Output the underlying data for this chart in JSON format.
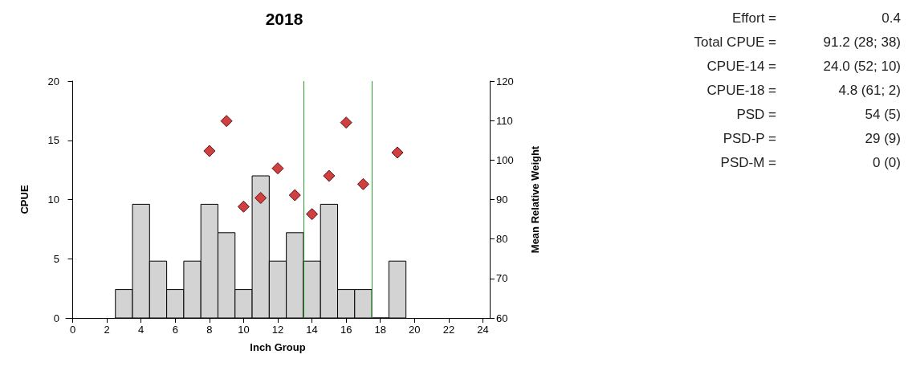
{
  "chart_data": {
    "type": "histogram",
    "title": "2018",
    "xlabel": "Inch Group",
    "ylabel": "CPUE",
    "y2label": "Mean Relative Weight",
    "bins": [
      2.5,
      3.5,
      4.5,
      5.5,
      6.5,
      7.5,
      8.5,
      9.5,
      10.5,
      11.5,
      12.5,
      13.5,
      14.5,
      15.5,
      16.5,
      17.5,
      18.5,
      19.5
    ],
    "values": [
      2.4,
      9.6,
      4.8,
      2.4,
      4.8,
      9.6,
      7.2,
      2.4,
      12,
      4.8,
      7.2,
      4.8,
      9.6,
      2.4,
      2.4,
      0,
      4.8
    ],
    "color": "#d3d3d3",
    "series": [
      {
        "type": "scatter",
        "axis": "y2",
        "color": "#d04040",
        "marker": "diamond",
        "x": [
          8,
          9,
          10,
          11,
          12,
          13,
          14,
          15,
          16,
          17,
          19
        ],
        "values": [
          102.3,
          109.9,
          88.2,
          90.4,
          97.9,
          91.1,
          86.3,
          96.0,
          109.5,
          93.9,
          101.9
        ]
      }
    ],
    "xlim": [
      -0.4,
      24.4
    ],
    "xticks": [
      0,
      2,
      4,
      6,
      8,
      10,
      12,
      14,
      16,
      18,
      20,
      22,
      24
    ],
    "ylim": [
      0,
      20
    ],
    "yticks": [
      0,
      5,
      10,
      15,
      20
    ],
    "y2lim": [
      60,
      120
    ],
    "y2ticks": [
      60,
      70,
      80,
      90,
      100,
      110,
      120
    ],
    "ref_lines": [
      {
        "axis": "x",
        "value": 13.5,
        "color": "#2e9e2e"
      },
      {
        "axis": "x",
        "value": 17.5,
        "color": "#2e9e2e"
      }
    ],
    "grid": false,
    "annotations": [
      "Effort = 0.4",
      "Total CPUE = 91.2 (28; 38)",
      "CPUE-14 = 24.0 (52; 10)",
      "CPUE-18 = 4.8 (61; 2)",
      "PSD = 54 (5)",
      "PSD-P = 29 (9)",
      "PSD-M = 0 (0)"
    ]
  }
}
